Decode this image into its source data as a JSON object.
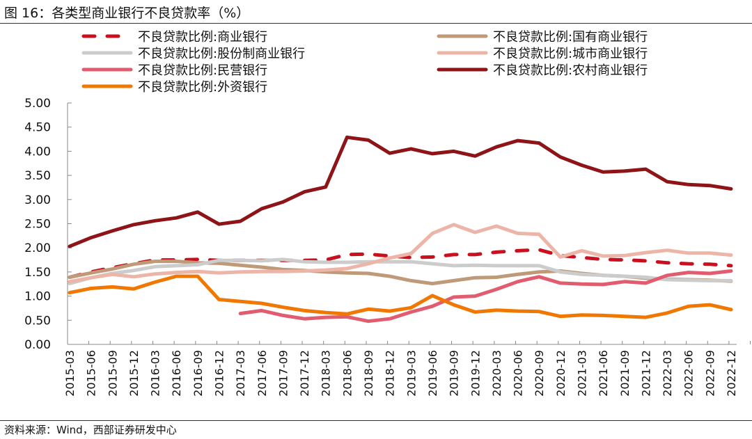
{
  "title": "图 16：各类型商业银行不良贷款率（%）",
  "source": "资料来源：Wind，西部证券研发中心",
  "chart_data": {
    "type": "line",
    "title": "",
    "xlabel": "",
    "ylabel": "",
    "ylim": [
      0,
      5
    ],
    "yticks": [
      "0.00",
      "0.50",
      "1.00",
      "1.50",
      "2.00",
      "2.50",
      "3.00",
      "3.50",
      "4.00",
      "4.50",
      "5.00"
    ],
    "grid": false,
    "legend_position": "top",
    "x": [
      "2015-03",
      "2015-06",
      "2015-09",
      "2015-12",
      "2016-03",
      "2016-06",
      "2016-09",
      "2016-12",
      "2017-03",
      "2017-06",
      "2017-09",
      "2017-12",
      "2018-03",
      "2018-06",
      "2018-09",
      "2018-12",
      "2019-03",
      "2019-06",
      "2019-09",
      "2019-12",
      "2020-03",
      "2020-06",
      "2020-09",
      "2020-12",
      "2021-03",
      "2021-06",
      "2021-09",
      "2021-12",
      "2022-03",
      "2022-06",
      "2022-09",
      "2022-12"
    ],
    "series": [
      {
        "name": "不良贷款比例:商业银行",
        "color": "#C8101E",
        "dash": true,
        "values": [
          1.39,
          1.5,
          1.59,
          1.67,
          1.75,
          1.75,
          1.76,
          1.74,
          1.74,
          1.74,
          1.74,
          1.74,
          1.75,
          1.86,
          1.87,
          1.83,
          1.8,
          1.81,
          1.86,
          1.86,
          1.91,
          1.94,
          1.96,
          1.84,
          1.8,
          1.76,
          1.75,
          1.73,
          1.69,
          1.67,
          1.66,
          1.63
        ]
      },
      {
        "name": "不良贷款比例:国有商业银行",
        "color": "#BF9A78",
        "dash": false,
        "values": [
          1.39,
          1.48,
          1.56,
          1.66,
          1.72,
          1.72,
          1.69,
          1.68,
          1.64,
          1.6,
          1.55,
          1.53,
          1.5,
          1.48,
          1.47,
          1.41,
          1.32,
          1.26,
          1.32,
          1.38,
          1.39,
          1.45,
          1.5,
          1.52,
          1.47,
          1.43,
          1.41,
          1.37,
          1.35,
          1.34,
          1.33,
          1.31
        ]
      },
      {
        "name": "不良贷款比例:股份制商业银行",
        "color": "#CCCCCC",
        "dash": false,
        "values": [
          1.26,
          1.38,
          1.47,
          1.53,
          1.61,
          1.63,
          1.65,
          1.74,
          1.74,
          1.73,
          1.76,
          1.71,
          1.7,
          1.7,
          1.71,
          1.71,
          1.71,
          1.67,
          1.63,
          1.64,
          1.63,
          1.63,
          1.63,
          1.5,
          1.45,
          1.43,
          1.41,
          1.39,
          1.34,
          1.33,
          1.32,
          1.32
        ]
      },
      {
        "name": "不良贷款比例:城市商业银行",
        "color": "#EDB5A8",
        "dash": false,
        "values": [
          1.3,
          1.38,
          1.45,
          1.4,
          1.46,
          1.49,
          1.51,
          1.48,
          1.5,
          1.51,
          1.51,
          1.52,
          1.54,
          1.57,
          1.67,
          1.79,
          1.88,
          2.3,
          2.48,
          2.32,
          2.45,
          2.3,
          2.28,
          1.81,
          1.94,
          1.83,
          1.84,
          1.9,
          1.95,
          1.89,
          1.89,
          1.85
        ]
      },
      {
        "name": "不良贷款比例:民营银行",
        "color": "#E05C6E",
        "dash": false,
        "values": [
          null,
          null,
          null,
          null,
          null,
          null,
          null,
          null,
          0.64,
          0.7,
          0.6,
          0.53,
          0.56,
          0.57,
          0.48,
          0.53,
          0.67,
          0.79,
          0.98,
          1.0,
          1.14,
          1.3,
          1.4,
          1.27,
          1.25,
          1.24,
          1.3,
          1.27,
          1.43,
          1.49,
          1.47,
          1.52
        ]
      },
      {
        "name": "不良贷款比例:农村商业银行",
        "color": "#8E1418",
        "dash": false,
        "values": [
          2.03,
          2.21,
          2.35,
          2.48,
          2.56,
          2.62,
          2.74,
          2.49,
          2.55,
          2.81,
          2.95,
          3.16,
          3.26,
          4.29,
          4.23,
          3.96,
          4.05,
          3.95,
          4.0,
          3.9,
          4.09,
          4.22,
          4.17,
          3.88,
          3.71,
          3.57,
          3.59,
          3.63,
          3.37,
          3.31,
          3.29,
          3.22
        ]
      },
      {
        "name": "不良贷款比例:外资银行",
        "color": "#F07800",
        "dash": false,
        "values": [
          1.07,
          1.16,
          1.19,
          1.15,
          1.29,
          1.41,
          1.41,
          0.93,
          0.89,
          0.85,
          0.77,
          0.7,
          0.66,
          0.63,
          0.73,
          0.69,
          0.76,
          1.01,
          0.82,
          0.67,
          0.71,
          0.69,
          0.68,
          0.58,
          0.61,
          0.6,
          0.58,
          0.56,
          0.65,
          0.79,
          0.82,
          0.72
        ]
      }
    ]
  }
}
